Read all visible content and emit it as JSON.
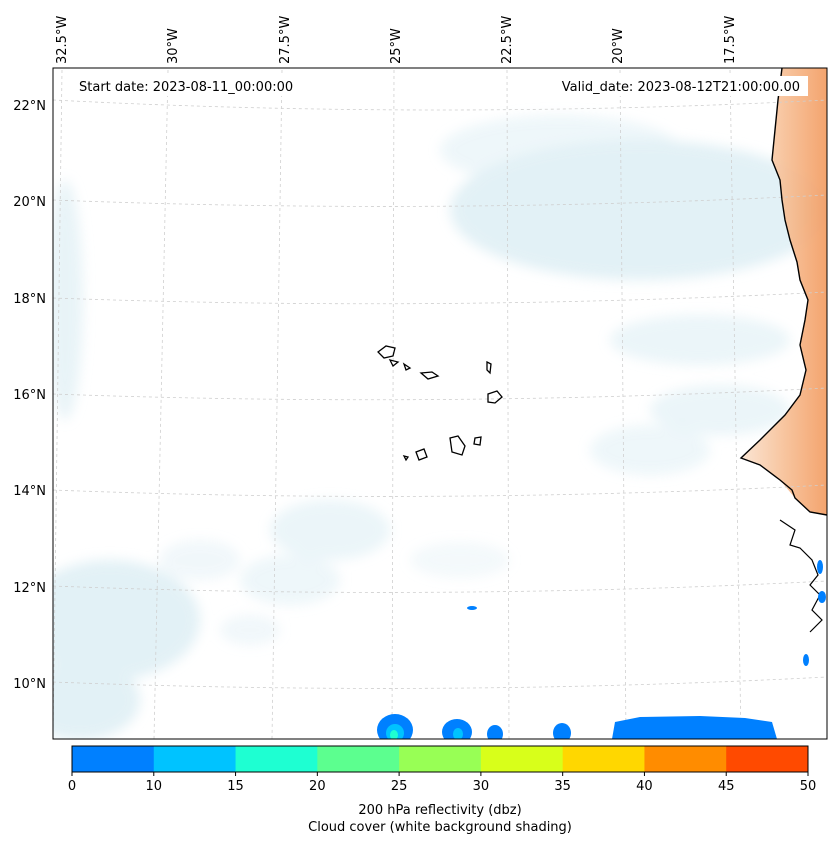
{
  "header": {
    "start_date": "Start date: 2023-08-11_00:00:00",
    "valid_date": "Valid_date: 2023-08-12T21:00:00.00"
  },
  "longitude_labels": [
    "32.5°W",
    "30°W",
    "27.5°W",
    "25°W",
    "22.5°W",
    "20°W",
    "17.5°W"
  ],
  "latitude_labels": [
    "22°N",
    "20°N",
    "18°N",
    "16°N",
    "14°N",
    "12°N",
    "10°N"
  ],
  "colorbar": {
    "ticks": [
      "0",
      "10",
      "15",
      "20",
      "25",
      "30",
      "35",
      "40",
      "45",
      "50"
    ],
    "colors": [
      "#0080ff",
      "#00c3ff",
      "#1effd2",
      "#5cff8f",
      "#98ff55",
      "#d8ff1a",
      "#ffd700",
      "#ff8c00",
      "#ff4a00"
    ],
    "label_line1": "200 hPa reflectivity (dbz)",
    "label_line2": "Cloud cover (white background shading)"
  },
  "colors": {
    "land_orange": "#f4a46c",
    "cloud_blue": "#d6ebf2",
    "coast": "#000000",
    "grid": "#c8c8c8"
  }
}
